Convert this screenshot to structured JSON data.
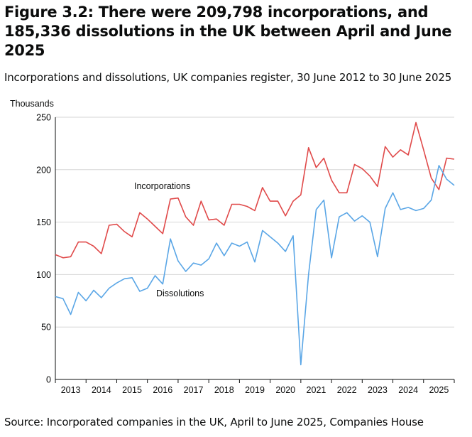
{
  "title": "Figure 3.2: There were 209,798 incorporations, and 185,336 dissolutions in the UK between April and June 2025",
  "subtitle": "Incorporations and dissolutions, UK companies register, 30 June 2012 to 30 June 2025",
  "source": "Source: Incorporated companies in the UK, April to June 2025, Companies House",
  "colors": {
    "incorporations": "#e04a4a",
    "dissolutions": "#5aa6e6",
    "grid": "#d6d6d6",
    "axis": "#0b0c0c"
  },
  "chart_data": {
    "type": "line",
    "ylabel": "Thousands",
    "xlabel": "",
    "ylim": [
      0,
      250
    ],
    "yticks": [
      0,
      50,
      100,
      150,
      200,
      250
    ],
    "xlim": [
      2012.5,
      2025.5
    ],
    "xticks": [
      2013,
      2014,
      2015,
      2016,
      2017,
      2018,
      2019,
      2020,
      2021,
      2022,
      2023,
      2024,
      2025
    ],
    "x": [
      2012.5,
      2012.75,
      2013.0,
      2013.25,
      2013.5,
      2013.75,
      2014.0,
      2014.25,
      2014.5,
      2014.75,
      2015.0,
      2015.25,
      2015.5,
      2015.75,
      2016.0,
      2016.25,
      2016.5,
      2016.75,
      2017.0,
      2017.25,
      2017.5,
      2017.75,
      2018.0,
      2018.25,
      2018.5,
      2018.75,
      2019.0,
      2019.25,
      2019.5,
      2019.75,
      2020.0,
      2020.25,
      2020.5,
      2020.75,
      2021.0,
      2021.25,
      2021.5,
      2021.75,
      2022.0,
      2022.25,
      2022.5,
      2022.75,
      2023.0,
      2023.25,
      2023.5,
      2023.75,
      2024.0,
      2024.25,
      2024.5,
      2024.75,
      2025.0,
      2025.25,
      2025.5
    ],
    "series": [
      {
        "name": "Incorporations",
        "values": [
          119,
          116,
          117,
          131,
          131,
          127,
          120,
          147,
          148,
          141,
          136,
          159,
          153,
          146,
          139,
          172,
          173,
          155,
          147,
          170,
          152,
          153,
          147,
          167,
          167,
          165,
          161,
          183,
          170,
          170,
          156,
          170,
          176,
          221,
          202,
          211,
          190,
          178,
          178,
          205,
          201,
          194,
          184,
          222,
          212,
          219,
          214,
          245,
          219,
          192,
          181,
          211,
          210
        ]
      },
      {
        "name": "Dissolutions",
        "values": [
          79,
          77,
          62,
          83,
          75,
          85,
          78,
          87,
          92,
          96,
          97,
          84,
          87,
          99,
          91,
          134,
          113,
          103,
          111,
          109,
          115,
          130,
          118,
          130,
          127,
          131,
          112,
          142,
          136,
          130,
          122,
          137,
          14,
          100,
          162,
          171,
          116,
          155,
          159,
          151,
          156,
          150,
          117,
          163,
          178,
          162,
          164,
          161,
          163,
          171,
          204,
          191,
          185
        ]
      }
    ]
  }
}
